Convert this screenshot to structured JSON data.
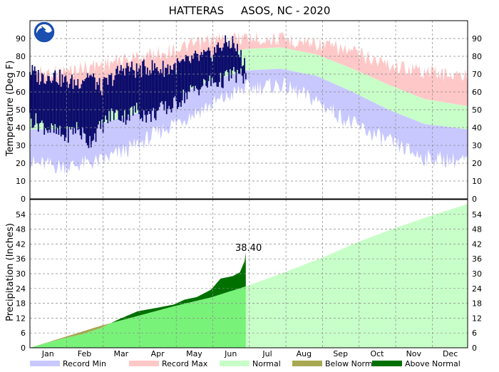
{
  "chart_data": [
    {
      "type": "area",
      "title": "HATTERAS     ASOS, NC - 2020",
      "ylabel": "Temperature (Deg F)",
      "ylim": [
        0,
        100
      ],
      "y_ticks": [
        0,
        10,
        20,
        30,
        40,
        50,
        60,
        70,
        80,
        90
      ],
      "months": [
        "Jan",
        "Feb",
        "Mar",
        "Apr",
        "May",
        "Jun",
        "Jul",
        "Aug",
        "Sep",
        "Oct",
        "Nov",
        "Dec"
      ],
      "grid": true,
      "normal": {
        "day": [
          1,
          30,
          60,
          90,
          120,
          150,
          180,
          210,
          240,
          270,
          300,
          330,
          366
        ],
        "high": [
          52,
          52,
          56,
          63,
          71,
          79,
          84,
          85,
          81,
          73,
          64,
          56,
          52
        ],
        "low": [
          39,
          39,
          42,
          48,
          57,
          66,
          72,
          73,
          69,
          60,
          50,
          42,
          39
        ]
      },
      "record": {
        "day": [
          1,
          30,
          60,
          90,
          120,
          150,
          180,
          210,
          240,
          270,
          300,
          330,
          366
        ],
        "max": [
          75,
          76,
          80,
          84,
          88,
          93,
          95,
          94,
          92,
          87,
          80,
          76,
          73
        ],
        "min": [
          15,
          13,
          16,
          25,
          37,
          47,
          57,
          59,
          50,
          37,
          27,
          18,
          16
        ]
      },
      "observed_through_day": 181,
      "observed": {
        "day": [
          1,
          10,
          20,
          30,
          40,
          50,
          60,
          70,
          80,
          90,
          100,
          110,
          120,
          130,
          140,
          150,
          160,
          170,
          181
        ],
        "high": [
          72,
          68,
          70,
          66,
          65,
          70,
          62,
          68,
          74,
          72,
          74,
          73,
          74,
          76,
          79,
          80,
          86,
          88,
          75
        ],
        "low": [
          45,
          42,
          38,
          35,
          40,
          32,
          40,
          48,
          46,
          50,
          46,
          50,
          52,
          58,
          62,
          65,
          66,
          70,
          68
        ]
      }
    },
    {
      "type": "area",
      "ylabel": "Precipitation (Inches)",
      "ylim": [
        0,
        60
      ],
      "y_ticks": [
        0,
        6,
        12,
        18,
        24,
        30,
        36,
        42,
        48,
        54
      ],
      "months": [
        "Jan",
        "Feb",
        "Mar",
        "Apr",
        "May",
        "Jun",
        "Jul",
        "Aug",
        "Sep",
        "Oct",
        "Nov",
        "Dec"
      ],
      "grid": true,
      "final_label": "38.40",
      "normal_cumulative": {
        "day": [
          1,
          31,
          60,
          91,
          121,
          152,
          182,
          213,
          244,
          274,
          305,
          335,
          366
        ],
        "value": [
          0,
          4.5,
          8.9,
          12.9,
          16.8,
          20.4,
          25.0,
          30.5,
          36.3,
          42.7,
          48.4,
          53.4,
          58.2
        ]
      },
      "observed_cumulative": {
        "day": [
          1,
          15,
          31,
          45,
          60,
          75,
          91,
          105,
          121,
          130,
          140,
          152,
          160,
          170,
          176,
          180,
          181
        ],
        "value": [
          0,
          2.0,
          4.0,
          5.6,
          8.0,
          11.5,
          14.8,
          16.0,
          17.5,
          19.5,
          20.5,
          23.5,
          28.0,
          29.0,
          30.5,
          35.0,
          38.4
        ]
      }
    }
  ],
  "legend": [
    {
      "label": "Record Min",
      "color": "#c8c8ff"
    },
    {
      "label": "Record Max",
      "color": "#ffc8c8"
    },
    {
      "label": "Normal",
      "color": "#c8ffc8"
    },
    {
      "label": "Below Normal",
      "color": "#a8a850"
    },
    {
      "label": "Above Normal",
      "color": "#007000"
    }
  ],
  "colors": {
    "observed_line": "#0b0b6b",
    "precip_observed_normal": "#79f279",
    "precip_future_normal": "#c8ffc8"
  },
  "logo": {
    "icon": "noaa-logo-icon",
    "text": "NOAA"
  }
}
